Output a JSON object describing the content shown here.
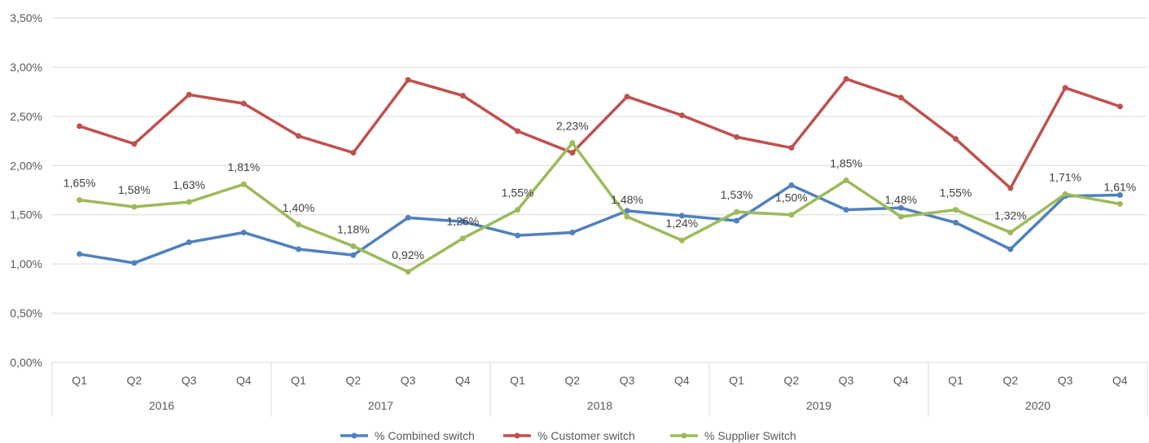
{
  "chart_data": {
    "type": "line",
    "title": "",
    "xlabel": "",
    "ylabel": "",
    "ylim": [
      0,
      0.035
    ],
    "y_ticks": [
      "0,00%",
      "0,50%",
      "1,00%",
      "1,50%",
      "2,00%",
      "2,50%",
      "3,00%",
      "3,50%"
    ],
    "y_tick_values": [
      0,
      0.005,
      0.01,
      0.015,
      0.02,
      0.025,
      0.03,
      0.035
    ],
    "grid": "horizontal",
    "legend_position": "bottom",
    "groups": [
      {
        "label": "2016",
        "quarters": [
          "Q1",
          "Q2",
          "Q3",
          "Q4"
        ]
      },
      {
        "label": "2017",
        "quarters": [
          "Q1",
          "Q2",
          "Q3",
          "Q4"
        ]
      },
      {
        "label": "2018",
        "quarters": [
          "Q1",
          "Q2",
          "Q3",
          "Q4"
        ]
      },
      {
        "label": "2019",
        "quarters": [
          "Q1",
          "Q2",
          "Q3",
          "Q4"
        ]
      },
      {
        "label": "2020",
        "quarters": [
          "Q1",
          "Q2",
          "Q3",
          "Q4"
        ]
      }
    ],
    "series": [
      {
        "name": "% Combined switch",
        "color": "#4F81BD",
        "values": [
          0.011,
          0.0101,
          0.0122,
          0.0132,
          0.0115,
          0.0109,
          0.0147,
          0.0143,
          0.0129,
          0.0132,
          0.0154,
          0.0149,
          0.0144,
          0.018,
          0.0155,
          0.0157,
          0.0142,
          0.0115,
          0.0169,
          0.017
        ],
        "labels": []
      },
      {
        "name": "% Customer switch",
        "color": "#C0504D",
        "values": [
          0.024,
          0.0222,
          0.0272,
          0.0263,
          0.023,
          0.0213,
          0.0287,
          0.0271,
          0.0235,
          0.0213,
          0.027,
          0.0251,
          0.0229,
          0.0218,
          0.0288,
          0.0269,
          0.0227,
          0.0177,
          0.0279,
          0.026
        ],
        "labels": []
      },
      {
        "name": "% Supplier Switch",
        "color": "#9BBB59",
        "values": [
          0.0165,
          0.0158,
          0.0163,
          0.0181,
          0.014,
          0.0118,
          0.0092,
          0.0126,
          0.0155,
          0.0223,
          0.0148,
          0.0124,
          0.0153,
          0.015,
          0.0185,
          0.0148,
          0.0155,
          0.0132,
          0.0171,
          0.0161
        ],
        "labels": [
          "1,65%",
          "1,58%",
          "1,63%",
          "1,81%",
          "1,40%",
          "1,18%",
          "0,92%",
          "1,26%",
          "1,55%",
          "2,23%",
          "1,48%",
          "1,24%",
          "1,53%",
          "1,50%",
          "1,85%",
          "1,48%",
          "1,55%",
          "1,32%",
          "1,71%",
          "1,61%"
        ]
      }
    ]
  }
}
